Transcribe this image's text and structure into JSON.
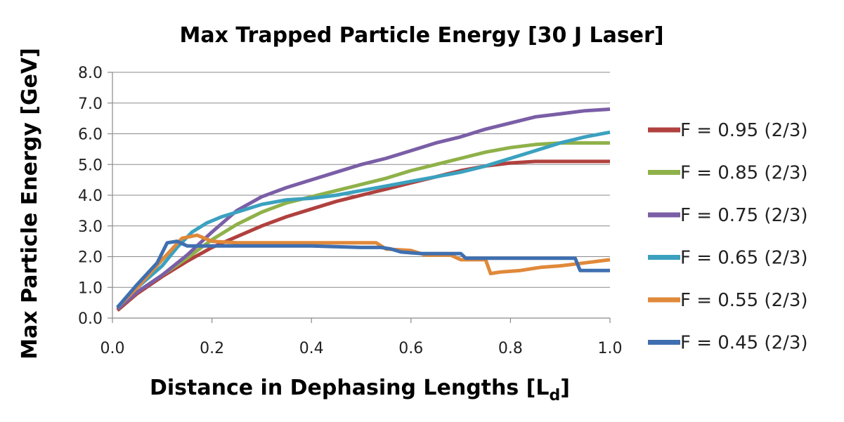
{
  "chart_data": {
    "type": "line",
    "title": "Max Trapped Particle Energy [30 J Laser]",
    "xlabel": "Distance in Dephasing Lengths [L",
    "xlabel_sub": "d",
    "xlabel_end": "]",
    "ylabel": "Max Particle Energy [GeV]",
    "xlim": [
      0.0,
      1.0
    ],
    "ylim": [
      0.0,
      8.0
    ],
    "x_ticks": [
      0.0,
      0.2,
      0.4,
      0.6,
      0.8,
      1.0
    ],
    "x_tick_labels": [
      "0.0",
      "0.2",
      "0.4",
      "0.6",
      "0.8",
      "1.0"
    ],
    "y_ticks": [
      0,
      1,
      2,
      3,
      4,
      5,
      6,
      7,
      8
    ],
    "y_tick_labels": [
      "0.0",
      "1.0",
      "2.0",
      "3.0",
      "4.0",
      "5.0",
      "6.0",
      "7.0",
      "8.0"
    ],
    "grid": "horizontal",
    "legend_position": "right",
    "series": [
      {
        "name": "F = 0.95 (2/3)",
        "color": "#b0413e",
        "x": [
          0.01,
          0.05,
          0.1,
          0.15,
          0.2,
          0.25,
          0.3,
          0.35,
          0.4,
          0.45,
          0.5,
          0.55,
          0.6,
          0.65,
          0.7,
          0.75,
          0.8,
          0.85,
          0.9,
          0.95,
          1.0
        ],
        "y": [
          0.25,
          0.8,
          1.35,
          1.85,
          2.3,
          2.65,
          3.0,
          3.3,
          3.55,
          3.8,
          4.0,
          4.2,
          4.4,
          4.6,
          4.8,
          4.95,
          5.05,
          5.1,
          5.1,
          5.1,
          5.1
        ]
      },
      {
        "name": "F = 0.85 (2/3)",
        "color": "#8fb14a",
        "x": [
          0.01,
          0.05,
          0.1,
          0.15,
          0.2,
          0.25,
          0.3,
          0.35,
          0.4,
          0.45,
          0.5,
          0.55,
          0.6,
          0.65,
          0.7,
          0.75,
          0.8,
          0.85,
          0.9,
          0.95,
          1.0
        ],
        "y": [
          0.3,
          0.85,
          1.4,
          1.95,
          2.55,
          3.05,
          3.45,
          3.75,
          3.95,
          4.15,
          4.35,
          4.55,
          4.8,
          5.0,
          5.2,
          5.4,
          5.55,
          5.65,
          5.7,
          5.7,
          5.7
        ]
      },
      {
        "name": "F = 0.75 (2/3)",
        "color": "#7a5ea6",
        "x": [
          0.01,
          0.05,
          0.1,
          0.15,
          0.2,
          0.25,
          0.3,
          0.35,
          0.4,
          0.45,
          0.5,
          0.55,
          0.6,
          0.65,
          0.7,
          0.75,
          0.8,
          0.85,
          0.9,
          0.95,
          1.0
        ],
        "y": [
          0.3,
          0.85,
          1.4,
          2.05,
          2.8,
          3.5,
          3.95,
          4.25,
          4.5,
          4.75,
          5.0,
          5.2,
          5.45,
          5.7,
          5.9,
          6.15,
          6.35,
          6.55,
          6.65,
          6.75,
          6.8
        ]
      },
      {
        "name": "F = 0.65 (2/3)",
        "color": "#3ba1bf",
        "x": [
          0.01,
          0.05,
          0.1,
          0.13,
          0.16,
          0.19,
          0.22,
          0.25,
          0.3,
          0.35,
          0.4,
          0.45,
          0.5,
          0.55,
          0.6,
          0.65,
          0.7,
          0.75,
          0.8,
          0.85,
          0.9,
          0.95,
          1.0
        ],
        "y": [
          0.35,
          1.0,
          1.7,
          2.3,
          2.8,
          3.1,
          3.3,
          3.45,
          3.7,
          3.85,
          3.9,
          4.0,
          4.15,
          4.3,
          4.45,
          4.6,
          4.75,
          4.95,
          5.2,
          5.45,
          5.7,
          5.9,
          6.05
        ]
      },
      {
        "name": "F = 0.55 (2/3)",
        "color": "#e0893a",
        "x": [
          0.01,
          0.05,
          0.1,
          0.14,
          0.17,
          0.2,
          0.25,
          0.3,
          0.4,
          0.5,
          0.53,
          0.55,
          0.6,
          0.63,
          0.68,
          0.7,
          0.75,
          0.76,
          0.78,
          0.82,
          0.86,
          0.9,
          0.95,
          1.0
        ],
        "y": [
          0.35,
          1.0,
          1.9,
          2.6,
          2.7,
          2.5,
          2.45,
          2.45,
          2.45,
          2.45,
          2.45,
          2.25,
          2.2,
          2.05,
          2.05,
          1.9,
          1.9,
          1.45,
          1.5,
          1.55,
          1.65,
          1.7,
          1.8,
          1.9
        ]
      },
      {
        "name": "F = 0.45 (2/3)",
        "color": "#3f6fb0",
        "x": [
          0.01,
          0.05,
          0.09,
          0.11,
          0.13,
          0.15,
          0.2,
          0.3,
          0.4,
          0.5,
          0.54,
          0.56,
          0.58,
          0.62,
          0.65,
          0.7,
          0.71,
          0.8,
          0.9,
          0.93,
          0.94,
          1.0
        ],
        "y": [
          0.35,
          1.1,
          1.8,
          2.45,
          2.5,
          2.35,
          2.35,
          2.35,
          2.35,
          2.3,
          2.3,
          2.25,
          2.15,
          2.1,
          2.1,
          2.1,
          1.95,
          1.95,
          1.95,
          1.95,
          1.55,
          1.55
        ]
      }
    ]
  }
}
